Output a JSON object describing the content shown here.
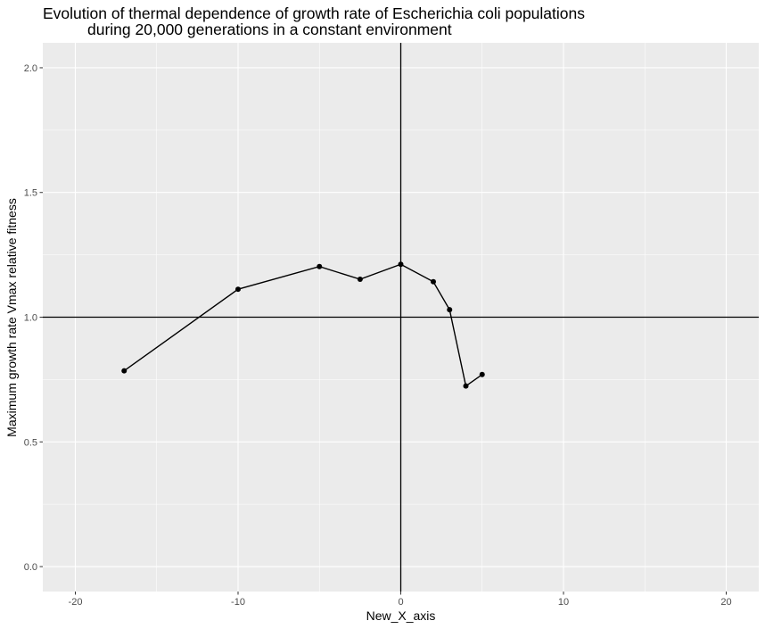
{
  "chart_data": {
    "type": "line",
    "title_lines": [
      "Evolution of thermal dependence of growth rate of Escherichia coli populations",
      "during 20,000 generations in a constant environment"
    ],
    "xlabel": "New_X_axis",
    "ylabel": "Maximum growth rate Vmax  relative fitness",
    "xlim": [
      -22,
      22
    ],
    "ylim": [
      -0.1,
      2.1
    ],
    "x_ticks": [
      -20,
      -10,
      0,
      10,
      20
    ],
    "x_tick_labels": [
      "-20",
      "-10",
      "0",
      "10",
      "20"
    ],
    "y_ticks": [
      0.0,
      0.5,
      1.0,
      1.5,
      2.0
    ],
    "y_tick_labels": [
      "0.0",
      "0.5",
      "1.0",
      "1.5",
      "2.0"
    ],
    "reference_lines": {
      "vertical_x": 0,
      "horizontal_y": 1.0
    },
    "grid": true,
    "series": [
      {
        "x": [
          -17,
          -10,
          -5,
          -2.5,
          0,
          2,
          3,
          4,
          5
        ],
        "y": [
          0.785,
          1.112,
          1.203,
          1.152,
          1.212,
          1.142,
          1.03,
          0.724,
          0.77
        ]
      }
    ],
    "colors": {
      "panel_background": "#ebebeb",
      "grid_major": "#ffffff",
      "line": "#000000",
      "points": "#000000"
    }
  }
}
